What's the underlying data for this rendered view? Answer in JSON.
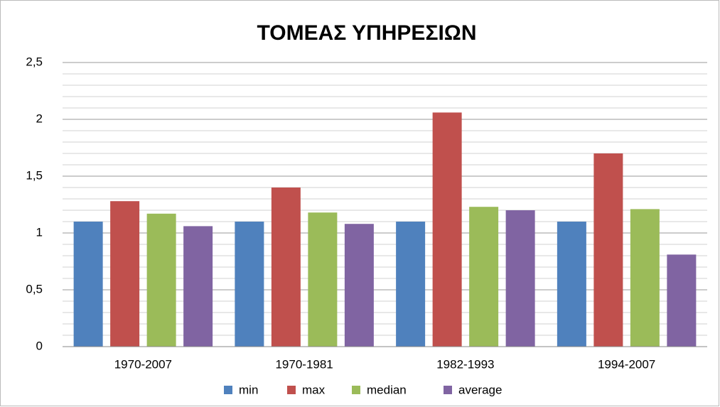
{
  "chart_data": {
    "type": "bar",
    "title": "ΤΟΜΕΑΣ ΥΠΗΡΕΣΙΩΝ",
    "categories": [
      "1970-2007",
      "1970-1981",
      "1982-1993",
      "1994-2007"
    ],
    "series": [
      {
        "name": "min",
        "color": "#4f81bd",
        "values": [
          1.1,
          1.1,
          1.1,
          1.1
        ]
      },
      {
        "name": "max",
        "color": "#c0504d",
        "values": [
          1.28,
          1.4,
          2.06,
          1.7
        ]
      },
      {
        "name": "median",
        "color": "#9bbb59",
        "values": [
          1.17,
          1.18,
          1.23,
          1.21
        ]
      },
      {
        "name": "average",
        "color": "#8064a2",
        "values": [
          1.06,
          1.08,
          1.2,
          0.81
        ]
      }
    ],
    "ylim": [
      0,
      2.5
    ],
    "yticks": [
      0,
      {
        "value": 0.5,
        "label": "0,5"
      },
      1,
      {
        "value": 1.5,
        "label": "1,5"
      },
      2,
      {
        "value": 2.5,
        "label": "2,5"
      }
    ],
    "minor_yticks": [
      0.1,
      0.2,
      0.3,
      0.4,
      0.6,
      0.7,
      0.8,
      0.9,
      1.1,
      1.2,
      1.3,
      1.4,
      1.6,
      1.7,
      1.8,
      1.9,
      2.1,
      2.2,
      2.3,
      2.4
    ],
    "grid": true,
    "legend": "bottom"
  }
}
